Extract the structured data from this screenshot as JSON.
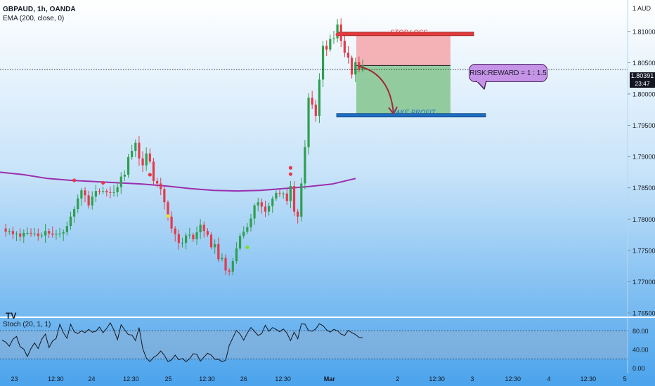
{
  "header": {
    "symbol_line": "GBPAUD, 1h, OANDA",
    "ema_line": "EMA (200, close, 0)",
    "stoch_line": "Stoch (20, 1, 1)",
    "currency_label": "1 AUD"
  },
  "colors": {
    "bg_top": "#ffffff",
    "bg_bottom": "#4aa3ec",
    "bull": "#2e9e4f",
    "bear": "#e53a4a",
    "ema": "#9b2fae",
    "stop_zone": "#f4a6a9",
    "stop_line": "#e23b3b",
    "profit_zone": "#84c48d",
    "profit_line": "#1e6fc4",
    "osc_line": "#131722",
    "arrow": "#a32a38",
    "rr_fill": "#c694e6"
  },
  "price_badge": {
    "price": "1.80391",
    "countdown": "23:47"
  },
  "trade_setup": {
    "stop_loss_label": "STOP LOSS",
    "take_profit_label": "TAKE PROFIT",
    "risk_reward_label": "RISK:REWARD = 1 : 1.5",
    "entry": 1.80455,
    "stop_loss": 1.8096,
    "take_profit": 1.7966
  },
  "chart_data": [
    {
      "type": "candlestick",
      "title": "",
      "y_axis_ticks": [
        1.81,
        1.805,
        1.8,
        1.795,
        1.79,
        1.785,
        1.78,
        1.775,
        1.77,
        1.765
      ],
      "y_axis_labels": [
        "1.81000",
        "1.80500",
        "1.80000",
        "1.79500",
        "1.79000",
        "1.78500",
        "1.78000",
        "1.77500",
        "1.77000",
        "1.76500"
      ],
      "ylim": [
        1.765,
        1.813
      ],
      "x_axis_labels": [
        {
          "label": "23",
          "pos": 0.022
        },
        {
          "label": "12:30",
          "pos": 0.085
        },
        {
          "label": "24",
          "pos": 0.14
        },
        {
          "label": "12:30",
          "pos": 0.2
        },
        {
          "label": "25",
          "pos": 0.257
        },
        {
          "label": "12:30",
          "pos": 0.316
        },
        {
          "label": "26",
          "pos": 0.372
        },
        {
          "label": "12:30",
          "pos": 0.432
        },
        {
          "label": "Mar",
          "pos": 0.503
        },
        {
          "label": "2",
          "pos": 0.607
        },
        {
          "label": "12:30",
          "pos": 0.667
        },
        {
          "label": "3",
          "pos": 0.721
        },
        {
          "label": "12:30",
          "pos": 0.783
        },
        {
          "label": "4",
          "pos": 0.838
        },
        {
          "label": "12:30",
          "pos": 0.898
        },
        {
          "label": "5",
          "pos": 0.954
        }
      ],
      "price_levels": [
        1.7785,
        1.778,
        1.7781,
        1.7776,
        1.7777,
        1.7772,
        1.7778,
        1.7778,
        1.7777,
        1.7777,
        1.7773,
        1.7774,
        1.7781,
        1.7777,
        1.7775,
        1.7776,
        1.7777,
        1.7779,
        1.7789,
        1.7804,
        1.7816,
        1.7833,
        1.7846,
        1.7838,
        1.7822,
        1.7836,
        1.7845,
        1.7844,
        1.7845,
        1.7843,
        1.7842,
        1.7843,
        1.7851,
        1.7868,
        1.7871,
        1.7899,
        1.7909,
        1.7922,
        1.7897,
        1.7886,
        1.7905,
        1.7892,
        1.7861,
        1.7857,
        1.7848,
        1.7827,
        1.7804,
        1.7785,
        1.7776,
        1.7762,
        1.7762,
        1.7774,
        1.7775,
        1.7768,
        1.7779,
        1.7791,
        1.7781,
        1.7775,
        1.7755,
        1.776,
        1.7736,
        1.7738,
        1.7718,
        1.7716,
        1.7733,
        1.7753,
        1.7773,
        1.778,
        1.7787,
        1.7801,
        1.7822,
        1.7827,
        1.782,
        1.7812,
        1.7821,
        1.7833,
        1.7842,
        1.7841,
        1.7841,
        1.7829,
        1.7853,
        1.7812,
        1.7804,
        1.7857,
        1.7915,
        1.7994,
        1.7983,
        1.7965,
        1.8023,
        1.8077,
        1.8071,
        1.8088,
        1.8089,
        1.8111,
        1.8085,
        1.8066,
        1.8058,
        1.8031,
        1.8051,
        1.8039,
        1.8046
      ],
      "last_price": 1.80391,
      "series": [
        {
          "name": "EMA (200, close, 0)",
          "values": [
            1.7875,
            1.7871,
            1.7865,
            1.7862,
            1.786,
            1.7858,
            1.7856,
            1.7853,
            1.7849,
            1.7846,
            1.7845,
            1.7846,
            1.7849,
            1.7852,
            1.7856,
            1.7865
          ]
        }
      ]
    },
    {
      "type": "line",
      "title": "",
      "y_axis_labels": [
        "80.00",
        "40.00",
        "0.00"
      ],
      "ylim": [
        -5,
        100
      ],
      "bands": [
        20,
        80
      ],
      "series": [
        {
          "name": "Stoch (20, 1, 1)",
          "values": [
            60,
            56,
            47,
            62,
            68,
            46,
            41,
            25,
            42,
            54,
            42,
            62,
            73,
            44,
            58,
            64,
            94,
            76,
            64,
            94,
            78,
            74,
            80,
            76,
            83,
            77,
            79,
            88,
            76,
            85,
            97,
            82,
            61,
            93,
            82,
            72,
            71,
            59,
            87,
            42,
            22,
            14,
            23,
            28,
            37,
            28,
            14,
            18,
            28,
            18,
            21,
            14,
            20,
            31,
            30,
            15,
            24,
            32,
            28,
            19,
            19,
            14,
            17,
            49,
            65,
            81,
            73,
            60,
            75,
            87,
            79,
            70,
            74,
            92,
            79,
            87,
            83,
            78,
            84,
            75,
            59,
            77,
            63,
            95,
            94,
            80,
            79,
            84,
            95,
            91,
            82,
            77,
            83,
            80,
            73,
            70,
            81,
            76,
            72,
            66,
            65
          ]
        }
      ]
    }
  ]
}
